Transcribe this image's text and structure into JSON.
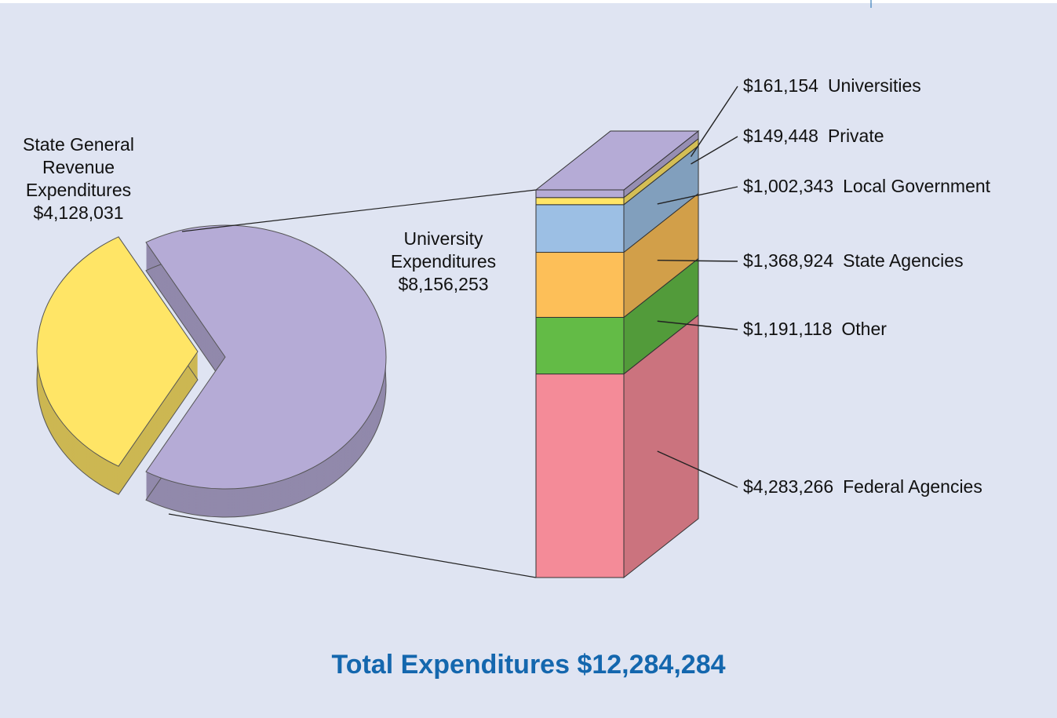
{
  "chart_data": {
    "type": "pie_bar",
    "title": "Total Expenditures $12,284,284",
    "pie": {
      "categories": [
        "State General Revenue Expenditures",
        "University Expenditures"
      ],
      "values": [
        4128031,
        8156253
      ],
      "value_labels": [
        "$4,128,031",
        "$8,156,253"
      ],
      "colors": [
        "#ffe566",
        "#b5abd6"
      ]
    },
    "bar": {
      "categories": [
        "Universities",
        "Private",
        "Local Government",
        "State Agencies",
        "Other",
        "Federal Agencies"
      ],
      "values": [
        161154,
        149448,
        1002343,
        1368924,
        1191118,
        4283266
      ],
      "value_labels": [
        "$161,154",
        "$149,448",
        "$1,002,343",
        "$1,368,924",
        "$1,191,118",
        "$4,283,266"
      ],
      "colors": [
        "#b5abd6",
        "#ffe566",
        "#9cbfe4",
        "#fdbf58",
        "#63bb46",
        "#f48b98"
      ]
    }
  }
}
